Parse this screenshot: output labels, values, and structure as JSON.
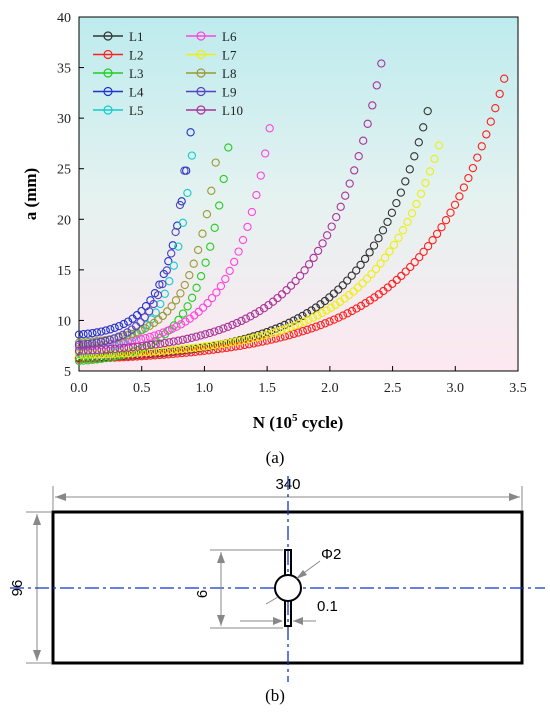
{
  "chart_data": {
    "type": "scatter",
    "xlabel_main": "N (10",
    "xlabel_sup": "5",
    "xlabel_tail": " cycle)",
    "ylabel": "a (mm)",
    "xlim": [
      0,
      3.5
    ],
    "ylim": [
      5,
      40
    ],
    "xticks": [
      "0.0",
      "0.5",
      "1.0",
      "1.5",
      "2.0",
      "2.5",
      "3.0",
      "3.5"
    ],
    "yticks": [
      "5",
      "10",
      "15",
      "20",
      "25",
      "30",
      "35",
      "40"
    ],
    "legend_position": "top-left",
    "panel_label": "(a)",
    "series": [
      {
        "name": "L1",
        "color": "#333333",
        "a0": 6.3,
        "nmax": 2.78,
        "amax": 30.7
      },
      {
        "name": "L2",
        "color": "#ff2020",
        "a0": 6.2,
        "nmax": 3.39,
        "amax": 33.9
      },
      {
        "name": "L3",
        "color": "#22cc22",
        "a0": 6.0,
        "nmax": 1.19,
        "amax": 27.1
      },
      {
        "name": "L4",
        "color": "#2233cc",
        "a0": 8.6,
        "nmax": 0.89,
        "amax": 28.6
      },
      {
        "name": "L5",
        "color": "#11cccc",
        "a0": 6.8,
        "nmax": 0.9,
        "amax": 26.3
      },
      {
        "name": "L6",
        "color": "#ff44dd",
        "a0": 7.4,
        "nmax": 1.52,
        "amax": 29.0
      },
      {
        "name": "L7",
        "color": "#eeee11",
        "a0": 6.6,
        "nmax": 2.87,
        "amax": 27.3
      },
      {
        "name": "L8",
        "color": "#999933",
        "a0": 7.8,
        "nmax": 1.09,
        "amax": 25.6
      },
      {
        "name": "L9",
        "color": "#5544bb",
        "a0": 7.6,
        "nmax": 0.84,
        "amax": 24.8
      },
      {
        "name": "L10",
        "color": "#aa3399",
        "a0": 7.0,
        "nmax": 2.41,
        "amax": 35.4
      }
    ]
  },
  "diagram": {
    "width_label": "340",
    "height_label": "96",
    "hole_label": "Φ2",
    "slot_label": "6",
    "gap_label": "0.1",
    "panel_label": "(b)"
  },
  "colors": {
    "centerline": "#1133cc"
  }
}
